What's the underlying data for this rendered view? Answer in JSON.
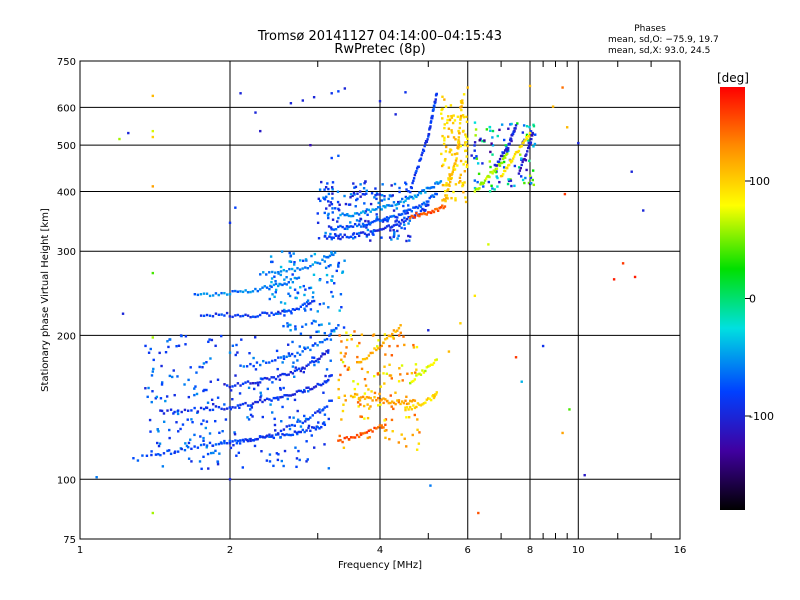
{
  "header": {
    "title_line1": "Tromsø 20141127 04:14:00–04:15:43",
    "title_line2": "RwPretec (8p)"
  },
  "stats": {
    "heading": "Phases",
    "line_o": "mean, sd,O: −75.9, 19.7",
    "line_x": "mean, sd,X:  93.0, 24.5"
  },
  "chart_data": {
    "type": "scatter",
    "title": "Tromsø 20141127 04:14:00–04:15:43",
    "subtitle": "RwPretec (8p)",
    "xlabel": "Frequency [MHz]",
    "ylabel": "Stationary phase Virtual Height [km]",
    "x_scale": "log",
    "y_scale": "log",
    "xlim": [
      1,
      16
    ],
    "ylim": [
      75,
      750
    ],
    "x_ticks": [
      1,
      2,
      4,
      6,
      8,
      10,
      16
    ],
    "x_tick_labels": [
      "1",
      "2",
      "4",
      "6",
      "8",
      "10",
      "16"
    ],
    "x_grid": [
      2,
      4,
      6,
      8,
      10
    ],
    "x_minor": [
      3,
      5,
      7,
      8.5,
      9,
      9.5,
      12,
      14
    ],
    "y_ticks": [
      75,
      100,
      200,
      300,
      400,
      500,
      600,
      750
    ],
    "y_tick_labels": [
      "75",
      "100",
      "200",
      "300",
      "400",
      "500",
      "600",
      "750"
    ],
    "y_grid": [
      100,
      200,
      300,
      400,
      500,
      600
    ],
    "grid": true,
    "colorbar": {
      "label": "[deg]",
      "range": [
        -180,
        180
      ],
      "ticks": [
        100,
        0,
        -100
      ],
      "tick_labels": [
        "100",
        "0",
        "-100"
      ],
      "colors": [
        "#ff0000",
        "#ff8c00",
        "#ffff00",
        "#00e000",
        "#00e0e0",
        "#0040ff",
        "#4000a0",
        "#000000"
      ]
    },
    "series": [
      {
        "traces": [
          {
            "f": [
              1.28,
              1.45,
              1.6,
              1.75,
              1.9,
              2.05,
              2.2,
              2.35,
              2.5,
              2.65,
              2.8,
              2.95,
              3.1
            ],
            "h": [
              110,
              113,
              115,
              118,
              119,
              120,
              121,
              122,
              123,
              124,
              126,
              128,
              130
            ],
            "phase": -80
          },
          {
            "f": [
              1.45,
              1.6,
              1.75,
              1.9,
              2.05,
              2.2,
              2.35,
              2.5,
              2.65,
              2.8,
              2.95,
              3.1,
              3.2
            ],
            "h": [
              138,
              139,
              140,
              141,
              142,
              144,
              146,
              148,
              150,
              153,
              156,
              160,
              165
            ],
            "phase": -90
          },
          {
            "f": [
              2.0,
              2.2,
              2.4,
              2.6,
              2.8,
              3.0,
              3.2
            ],
            "h": [
              118,
              121,
              124,
              128,
              132,
              138,
              146
            ],
            "phase": -85
          },
          {
            "f": [
              1.95,
              2.1,
              2.25,
              2.4,
              2.55,
              2.7,
              2.85,
              3.0,
              3.15
            ],
            "h": [
              157,
              158,
              160,
              162,
              165,
              168,
              172,
              178,
              186
            ],
            "phase": -95
          },
          {
            "f": [
              2.1,
              2.3,
              2.5,
              2.7,
              2.9,
              3.1,
              3.3
            ],
            "h": [
              172,
              175,
              178,
              182,
              188,
              196,
              210
            ],
            "phase": -70
          },
          {
            "f": [
              1.75,
              1.9,
              2.05,
              2.2,
              2.35,
              2.5,
              2.65,
              2.8,
              2.95
            ],
            "h": [
              222,
              221,
              220,
              220,
              221,
              223,
              226,
              230,
              236
            ],
            "phase": -85
          },
          {
            "f": [
              1.7,
              1.85,
              2.0,
              2.15,
              2.3,
              2.45,
              2.6,
              2.75
            ],
            "h": [
              242,
              244,
              246,
              248,
              250,
              253,
              258,
              264
            ],
            "phase": -60
          },
          {
            "f": [
              2.3,
              2.5,
              2.7,
              2.9,
              3.1,
              3.25
            ],
            "h": [
              270,
              272,
              275,
              280,
              288,
              298
            ],
            "phase": -55
          },
          {
            "f": [
              3.1,
              3.3,
              3.5,
              3.7,
              3.9,
              4.1,
              4.3,
              4.5,
              4.7,
              4.9,
              5.0
            ],
            "h": [
              320,
              321,
              323,
              326,
              330,
              335,
              341,
              348,
              356,
              366,
              375
            ],
            "phase": -90
          },
          {
            "f": [
              3.2,
              3.4,
              3.6,
              3.8,
              4.0,
              4.2,
              4.4,
              4.6,
              4.8,
              5.0,
              5.2
            ],
            "h": [
              335,
              337,
              340,
              343,
              347,
              352,
              358,
              365,
              373,
              383,
              395
            ],
            "phase": -75
          },
          {
            "f": [
              3.3,
              3.5,
              3.7,
              3.9,
              4.1,
              4.3,
              4.5,
              4.7,
              4.9,
              5.1,
              5.3
            ],
            "h": [
              355,
              358,
              362,
              367,
              372,
              378,
              385,
              392,
              400,
              410,
              420
            ],
            "phase": -55
          },
          {
            "f": [
              4.6,
              4.7,
              4.8,
              4.9,
              5.0,
              5.05,
              5.1,
              5.15,
              5.2
            ],
            "h": [
              400,
              430,
              460,
              490,
              520,
              550,
              580,
              610,
              640
            ],
            "phase": -85
          },
          {
            "f": [
              4.6,
              4.8,
              5.0,
              5.2,
              5.4
            ],
            "h": [
              355,
              358,
              362,
              367,
              372
            ],
            "phase": 150
          },
          {
            "f": [
              5.4,
              5.5,
              5.6,
              5.7,
              5.75,
              5.8,
              5.85
            ],
            "h": [
              380,
              410,
              440,
              470,
              510,
              560,
              620
            ],
            "phase": 105
          },
          {
            "f": [
              6.2,
              6.4,
              6.6,
              6.8,
              7.0,
              7.2
            ],
            "h": [
              400,
              415,
              430,
              445,
              460,
              480
            ],
            "phase": 60
          },
          {
            "f": [
              7.0,
              7.2,
              7.4,
              7.6,
              7.8,
              8.0
            ],
            "h": [
              430,
              450,
              470,
              490,
              510,
              530
            ],
            "phase": 90
          },
          {
            "f": [
              6.8,
              7.0,
              7.2,
              7.3,
              7.4,
              7.5
            ],
            "h": [
              450,
              470,
              490,
              510,
              530,
              550
            ],
            "phase": -100
          },
          {
            "f": [
              7.6,
              7.8,
              8.0,
              8.1
            ],
            "h": [
              440,
              470,
              500,
              530
            ],
            "phase": -110
          },
          {
            "f": [
              3.5,
              3.7,
              3.9,
              4.1,
              4.3,
              4.5,
              4.7
            ],
            "h": [
              150,
              148,
              147,
              146,
              145,
              145,
              146
            ],
            "phase": 120
          },
          {
            "f": [
              4.5,
              4.7,
              4.9,
              5.1,
              5.2
            ],
            "h": [
              140,
              142,
              145,
              148,
              152
            ],
            "phase": 95
          },
          {
            "f": [
              3.3,
              3.5,
              3.7,
              3.9,
              4.1
            ],
            "h": [
              120,
              122,
              124,
              127,
              130
            ],
            "phase": 150
          },
          {
            "f": [
              3.6,
              3.8,
              4.0,
              4.2,
              4.4
            ],
            "h": [
              175,
              182,
              190,
              200,
              210
            ],
            "phase": 115
          },
          {
            "f": [
              4.6,
              4.8,
              5.0,
              5.2
            ],
            "h": [
              160,
              165,
              172,
              178
            ],
            "phase": 70
          }
        ],
        "points": [
          {
            "f": 1.08,
            "h": 101,
            "phase": -60
          },
          {
            "f": 1.2,
            "h": 515,
            "phase": 60
          },
          {
            "f": 1.25,
            "h": 530,
            "phase": -100
          },
          {
            "f": 1.22,
            "h": 222,
            "phase": -100
          },
          {
            "f": 1.4,
            "h": 634,
            "phase": 110
          },
          {
            "f": 1.4,
            "h": 520,
            "phase": 100
          },
          {
            "f": 1.4,
            "h": 535,
            "phase": 70
          },
          {
            "f": 1.4,
            "h": 410,
            "phase": 120
          },
          {
            "f": 1.4,
            "h": 270,
            "phase": 40
          },
          {
            "f": 1.4,
            "h": 198,
            "phase": 60
          },
          {
            "f": 1.4,
            "h": 168,
            "phase": -60
          },
          {
            "f": 1.4,
            "h": 85,
            "phase": 60
          },
          {
            "f": 2.1,
            "h": 642,
            "phase": -100
          },
          {
            "f": 2.25,
            "h": 585,
            "phase": -100
          },
          {
            "f": 2.3,
            "h": 535,
            "phase": -110
          },
          {
            "f": 2.0,
            "h": 100,
            "phase": -100
          },
          {
            "f": 2.0,
            "h": 344,
            "phase": -90
          },
          {
            "f": 2.05,
            "h": 370,
            "phase": -80
          },
          {
            "f": 2.65,
            "h": 612,
            "phase": -100
          },
          {
            "f": 2.8,
            "h": 620,
            "phase": -100
          },
          {
            "f": 2.95,
            "h": 630,
            "phase": -100
          },
          {
            "f": 3.2,
            "h": 642,
            "phase": -90
          },
          {
            "f": 3.3,
            "h": 648,
            "phase": -80
          },
          {
            "f": 3.4,
            "h": 657,
            "phase": -100
          },
          {
            "f": 3.2,
            "h": 470,
            "phase": -80
          },
          {
            "f": 3.3,
            "h": 475,
            "phase": -70
          },
          {
            "f": 2.9,
            "h": 500,
            "phase": -120
          },
          {
            "f": 4.5,
            "h": 645,
            "phase": -90
          },
          {
            "f": 4.3,
            "h": 580,
            "phase": -100
          },
          {
            "f": 4.0,
            "h": 618,
            "phase": -100
          },
          {
            "f": 5.05,
            "h": 97,
            "phase": -60
          },
          {
            "f": 5.0,
            "h": 205,
            "phase": -100
          },
          {
            "f": 5.8,
            "h": 212,
            "phase": 100
          },
          {
            "f": 5.5,
            "h": 185,
            "phase": 110
          },
          {
            "f": 6.2,
            "h": 242,
            "phase": 90
          },
          {
            "f": 6.3,
            "h": 85,
            "phase": 150
          },
          {
            "f": 6.6,
            "h": 310,
            "phase": 70
          },
          {
            "f": 7.5,
            "h": 180,
            "phase": 160
          },
          {
            "f": 7.7,
            "h": 160,
            "phase": -40
          },
          {
            "f": 8.5,
            "h": 190,
            "phase": -90
          },
          {
            "f": 8.9,
            "h": 602,
            "phase": 110
          },
          {
            "f": 9.5,
            "h": 545,
            "phase": 110
          },
          {
            "f": 9.3,
            "h": 660,
            "phase": 140
          },
          {
            "f": 9.4,
            "h": 395,
            "phase": 160
          },
          {
            "f": 9.3,
            "h": 125,
            "phase": 120
          },
          {
            "f": 9.6,
            "h": 140,
            "phase": 40
          },
          {
            "f": 10.0,
            "h": 505,
            "phase": -100
          },
          {
            "f": 10.3,
            "h": 102,
            "phase": -110
          },
          {
            "f": 11.8,
            "h": 262,
            "phase": 170
          },
          {
            "f": 12.3,
            "h": 283,
            "phase": 160
          },
          {
            "f": 13.0,
            "h": 265,
            "phase": 170
          },
          {
            "f": 12.8,
            "h": 440,
            "phase": -100
          },
          {
            "f": 13.5,
            "h": 365,
            "phase": -100
          },
          {
            "f": 8.0,
            "h": 665,
            "phase": 110
          },
          {
            "f": 6.0,
            "h": 660,
            "phase": 110
          }
        ],
        "clusters": [
          {
            "f": [
              1.35,
              3.2
            ],
            "h": [
              105,
              200
            ],
            "n": 260,
            "phase": -75,
            "spread": 25
          },
          {
            "f": [
              2.4,
              3.4
            ],
            "h": [
              200,
              300
            ],
            "n": 120,
            "phase": -60,
            "spread": 25
          },
          {
            "f": [
              3.0,
              4.6
            ],
            "h": [
              315,
              420
            ],
            "n": 180,
            "phase": -80,
            "spread": 30
          },
          {
            "f": [
              3.3,
              4.8
            ],
            "h": [
              115,
              205
            ],
            "n": 140,
            "phase": 110,
            "spread": 40
          },
          {
            "f": [
              5.3,
              6.0
            ],
            "h": [
              380,
              640
            ],
            "n": 110,
            "phase": 100,
            "spread": 20
          },
          {
            "f": [
              6.1,
              8.2
            ],
            "h": [
              400,
              560
            ],
            "n": 110,
            "phase": -40,
            "spread": 100
          }
        ]
      }
    ]
  }
}
